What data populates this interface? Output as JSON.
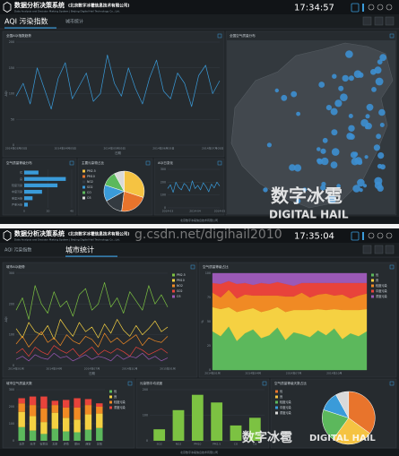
{
  "screens": [
    {
      "title": "数据分析决策系统",
      "company": "(北京数字冰雹信息技术有限公司)",
      "subtitle": "Data Analysis and Decision Making System | Beijing Digital Hail Technology Co., Ltd.",
      "time": "17:34:57",
      "tabs": [
        "AQI 污染指数",
        "城市统计"
      ],
      "footer": "北京数字冰雹信息技术有限公司"
    },
    {
      "title": "数据分析决策系统",
      "company": "(北京数字冰雹信息技术有限公司)",
      "subtitle": "Data Analysis and Decision Making System | Beijing Digital Hail Technology Co., Ltd.",
      "time": "17:35:04",
      "tabs": [
        "AQI 污染指数",
        "城市统计"
      ],
      "footer": "北京数字冰雹信息技术有限公司"
    }
  ],
  "map": {
    "title": "全国空气质量分布"
  },
  "watermark": {
    "cn": "数字冰雹",
    "en": "DIGITAL HAIL",
    "url": "g.csdn.net/digihail2010"
  },
  "chart_data": [
    {
      "type": "line",
      "title": "全国AQI指数趋势",
      "ylabel": "AQI",
      "xlabel": "日期",
      "color": "#3a9bd9",
      "categories": [
        "2014年03月05日",
        null,
        null,
        null,
        null,
        null,
        null,
        "2014年04月05日",
        null,
        null,
        null,
        null,
        null,
        null,
        "2014年05月05日",
        null,
        null,
        null,
        null,
        null,
        null,
        "2014年06月05日",
        null,
        null,
        null,
        null,
        null,
        null,
        "2014年07月05日",
        null
      ],
      "values": [
        95,
        120,
        80,
        150,
        110,
        70,
        130,
        160,
        90,
        115,
        140,
        85,
        100,
        175,
        120,
        95,
        150,
        110,
        80,
        130,
        165,
        105,
        90,
        140,
        120,
        75,
        135,
        155,
        100,
        125
      ],
      "ylim": [
        0,
        200
      ],
      "yticks": [
        0,
        50,
        100,
        150,
        200
      ]
    },
    {
      "type": "bar",
      "horizontal": true,
      "title": "空气质量等级分布",
      "color": "#3a9bd9",
      "categories": [
        "优",
        "良",
        "轻度污染",
        "中度污染",
        "重度污染",
        "严重污染"
      ],
      "values": [
        12,
        35,
        28,
        15,
        7,
        3
      ],
      "xlim": [
        0,
        40
      ],
      "xticks": [
        0,
        20,
        40
      ]
    },
    {
      "type": "pie",
      "title": "主要污染物占比",
      "categories": [
        "PM2.5",
        "PM10",
        "NO2",
        "SO2",
        "CO",
        "O3"
      ],
      "values": [
        30,
        22,
        15,
        13,
        12,
        8
      ],
      "colors": [
        "#f5c342",
        "#e8742c",
        "#333a40",
        "#3a9bd9",
        "#5cb85c",
        "#d9d9d9"
      ]
    },
    {
      "type": "line",
      "title": "AQI日变化",
      "color": "#3a9bd9",
      "categories": [
        "2014-03",
        null,
        null,
        null,
        null,
        null,
        null,
        null,
        null,
        null,
        "2014-04",
        null,
        null,
        null,
        null,
        null,
        null,
        null,
        null,
        "2014-05"
      ],
      "values": [
        150,
        180,
        120,
        200,
        160,
        140,
        190,
        170,
        130,
        210,
        150,
        175,
        140,
        195,
        165,
        125,
        185,
        155,
        200,
        170
      ],
      "ylim": [
        0,
        300
      ],
      "yticks": [
        0,
        100,
        200,
        300
      ]
    },
    {
      "type": "line",
      "title": "城市AQI趋势",
      "ylabel": "AQI",
      "xlabel": "日期",
      "categories": [
        "2014年01月",
        null,
        null,
        null,
        null,
        null,
        "2014年04月",
        null,
        null,
        null,
        null,
        null,
        "2014年07月",
        null,
        null,
        null,
        null,
        null,
        "2014年10月",
        null,
        null,
        null,
        null,
        null,
        "2015年01月"
      ],
      "series": [
        {
          "name": "PM2.5",
          "color": "#7cc242",
          "values": [
            180,
            220,
            150,
            260,
            200,
            170,
            240,
            190,
            210,
            160,
            230,
            250,
            180,
            200,
            270,
            190,
            220,
            170,
            240,
            210,
            180,
            260,
            200,
            230,
            190
          ]
        },
        {
          "name": "PM10",
          "color": "#f5d142",
          "values": [
            120,
            90,
            140,
            110,
            100,
            130,
            85,
            150,
            120,
            95,
            140,
            110,
            125,
            90,
            135,
            105,
            150,
            115,
            95,
            130,
            100,
            120,
            145,
            110,
            125
          ]
        },
        {
          "name": "NO2",
          "color": "#f08a24",
          "values": [
            70,
            95,
            60,
            85,
            110,
            75,
            90,
            65,
            100,
            80,
            70,
            95,
            85,
            60,
            105,
            75,
            90,
            70,
            85,
            100,
            65,
            90,
            80,
            75,
            95
          ]
        },
        {
          "name": "SO2",
          "color": "#e8433b",
          "values": [
            40,
            55,
            30,
            60,
            45,
            35,
            65,
            50,
            40,
            55,
            30,
            45,
            60,
            35,
            50,
            40,
            55,
            45,
            30,
            60,
            50,
            35,
            45,
            55,
            40
          ]
        },
        {
          "name": "O3",
          "color": "#9b59b6",
          "values": [
            20,
            30,
            15,
            35,
            25,
            20,
            40,
            25,
            30,
            15,
            25,
            35,
            20,
            30,
            25,
            15,
            35,
            20,
            30,
            25,
            40,
            20,
            30,
            15,
            25
          ]
        }
      ],
      "ylim": [
        0,
        300
      ],
      "yticks": [
        0,
        100,
        200,
        300
      ]
    },
    {
      "type": "area",
      "title": "空气质量等级占比",
      "ylabel": "%",
      "categories": [
        "2014年01月",
        null,
        null,
        null,
        null,
        "2014年04月",
        null,
        null,
        null,
        null,
        "2014年07月",
        null,
        null,
        null,
        null,
        "2014年10月",
        null,
        null,
        null,
        null
      ],
      "series": [
        {
          "name": "优",
          "color": "#5cb85c",
          "values": [
            40,
            35,
            45,
            30,
            38,
            42,
            33,
            36,
            44,
            31,
            39,
            37,
            34,
            41,
            36,
            43,
            32,
            38,
            35,
            40
          ]
        },
        {
          "name": "良",
          "color": "#f5d142",
          "values": [
            25,
            28,
            20,
            30,
            24,
            22,
            27,
            26,
            21,
            29,
            23,
            25,
            28,
            22,
            26,
            20,
            30,
            24,
            27,
            23
          ]
        },
        {
          "name": "轻度污染",
          "color": "#f08a24",
          "values": [
            15,
            12,
            18,
            14,
            16,
            13,
            17,
            15,
            12,
            16,
            14,
            18,
            13,
            15,
            17,
            14,
            16,
            12,
            15,
            16
          ]
        },
        {
          "name": "中度污染",
          "color": "#e8433b",
          "values": [
            10,
            14,
            9,
            15,
            12,
            11,
            13,
            12,
            14,
            13,
            11,
            10,
            15,
            12,
            11,
            13,
            12,
            16,
            13,
            11
          ]
        },
        {
          "name": "重度污染",
          "color": "#9b59b6",
          "values": [
            10,
            11,
            8,
            11,
            10,
            12,
            10,
            11,
            9,
            11,
            13,
            10,
            10,
            10,
            10,
            10,
            10,
            10,
            10,
            10
          ]
        }
      ],
      "ylim": [
        0,
        100
      ],
      "yticks": [
        0,
        25,
        50,
        75,
        100
      ]
    },
    {
      "type": "bar",
      "title": "城市空气质量天数",
      "categories": [
        "北京",
        "天津",
        "石家庄",
        "太原",
        "济南",
        "郑州",
        "西安",
        "沈阳"
      ],
      "series": [
        {
          "name": "优",
          "color": "#5cb85c",
          "values": [
            80,
            60,
            40,
            70,
            55,
            50,
            65,
            75
          ]
        },
        {
          "name": "良",
          "color": "#f5d142",
          "values": [
            90,
            85,
            70,
            95,
            80,
            75,
            90,
            85
          ]
        },
        {
          "name": "轻度污染",
          "color": "#f08a24",
          "values": [
            50,
            65,
            80,
            45,
            60,
            70,
            55,
            40
          ]
        },
        {
          "name": "重度污染",
          "color": "#e8433b",
          "values": [
            30,
            50,
            70,
            25,
            45,
            55,
            35,
            20
          ]
        }
      ],
      "ylim": [
        0,
        300
      ],
      "yticks": [
        0,
        100,
        200,
        300
      ]
    },
    {
      "type": "bar",
      "title": "污染物平均浓度",
      "color": "#7cc242",
      "categories": [
        "SO2",
        "NO2",
        "PM10",
        "PM2.5",
        "CO",
        "O3"
      ],
      "values": [
        45,
        120,
        180,
        150,
        60,
        90
      ],
      "ylim": [
        0,
        200
      ],
      "yticks": [
        0,
        100,
        200
      ]
    },
    {
      "type": "pie",
      "title": "空气质量等级天数占比",
      "categories": [
        "优",
        "良",
        "轻度污染",
        "中度污染",
        "重度污染"
      ],
      "values": [
        35,
        25,
        20,
        12,
        8
      ],
      "colors": [
        "#e8742c",
        "#f5c342",
        "#5cb85c",
        "#3a9bd9",
        "#d9d9d9"
      ]
    }
  ]
}
